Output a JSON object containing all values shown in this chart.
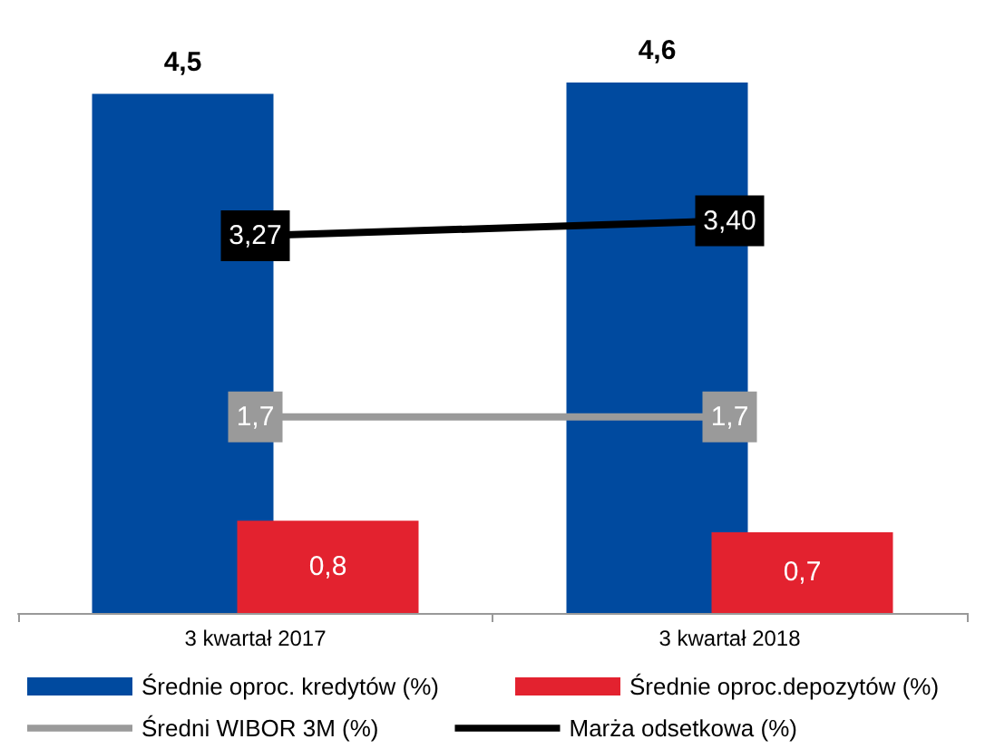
{
  "chart_data": {
    "type": "bar",
    "categories": [
      "3 kwartał 2017",
      "3 kwartał 2018"
    ],
    "series": [
      {
        "name": "Średnie oproc. kredytów (%)",
        "color": "#004a9f",
        "values": [
          4.5,
          4.6
        ],
        "value_labels": [
          "4,5",
          "4,6"
        ]
      },
      {
        "name": "Średnie oproc.depozytów (%)",
        "color": "#e3222f",
        "values": [
          0.8,
          0.7
        ],
        "value_labels": [
          "0,8",
          "0,7"
        ]
      },
      {
        "name": "Średni WIBOR 3M (%)",
        "type": "line",
        "color": "#9a9a9a",
        "values": [
          1.7,
          1.7
        ],
        "value_labels": [
          "1,7",
          "1,7"
        ]
      },
      {
        "name": "Marża odsetkowa (%)",
        "type": "line",
        "color": "#000000",
        "values": [
          3.27,
          3.4
        ],
        "value_labels": [
          "3,27",
          "3,40"
        ]
      }
    ],
    "legend": "bottom",
    "grid": false,
    "marker": "square"
  }
}
